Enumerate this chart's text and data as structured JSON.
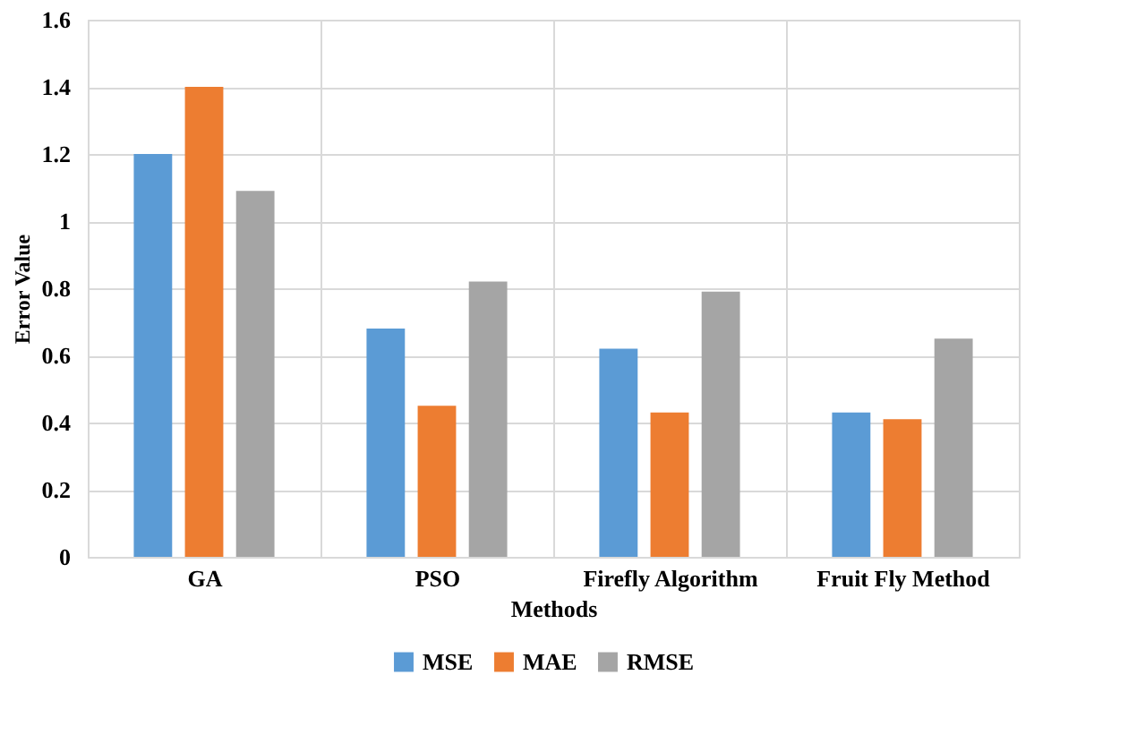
{
  "chart_data": {
    "type": "bar",
    "xlabel": "Methods",
    "ylabel": "Error Value",
    "categories": [
      "GA",
      "PSO",
      "Firefly Algorithm",
      "Fruit Fly Method"
    ],
    "series": [
      {
        "name": "MSE",
        "color": "#5b9bd5",
        "values": [
          1.2,
          0.68,
          0.62,
          0.43
        ]
      },
      {
        "name": "MAE",
        "color": "#ed7d31",
        "values": [
          1.4,
          0.45,
          0.43,
          0.41
        ]
      },
      {
        "name": "RMSE",
        "color": "#a5a5a5",
        "values": [
          1.09,
          0.82,
          0.79,
          0.65
        ]
      }
    ],
    "ylim": [
      0,
      1.6
    ],
    "yticks": [
      0,
      0.2,
      0.4,
      0.6,
      0.8,
      1,
      1.2,
      1.4,
      1.6
    ],
    "grid": true,
    "legend": "bottom"
  }
}
